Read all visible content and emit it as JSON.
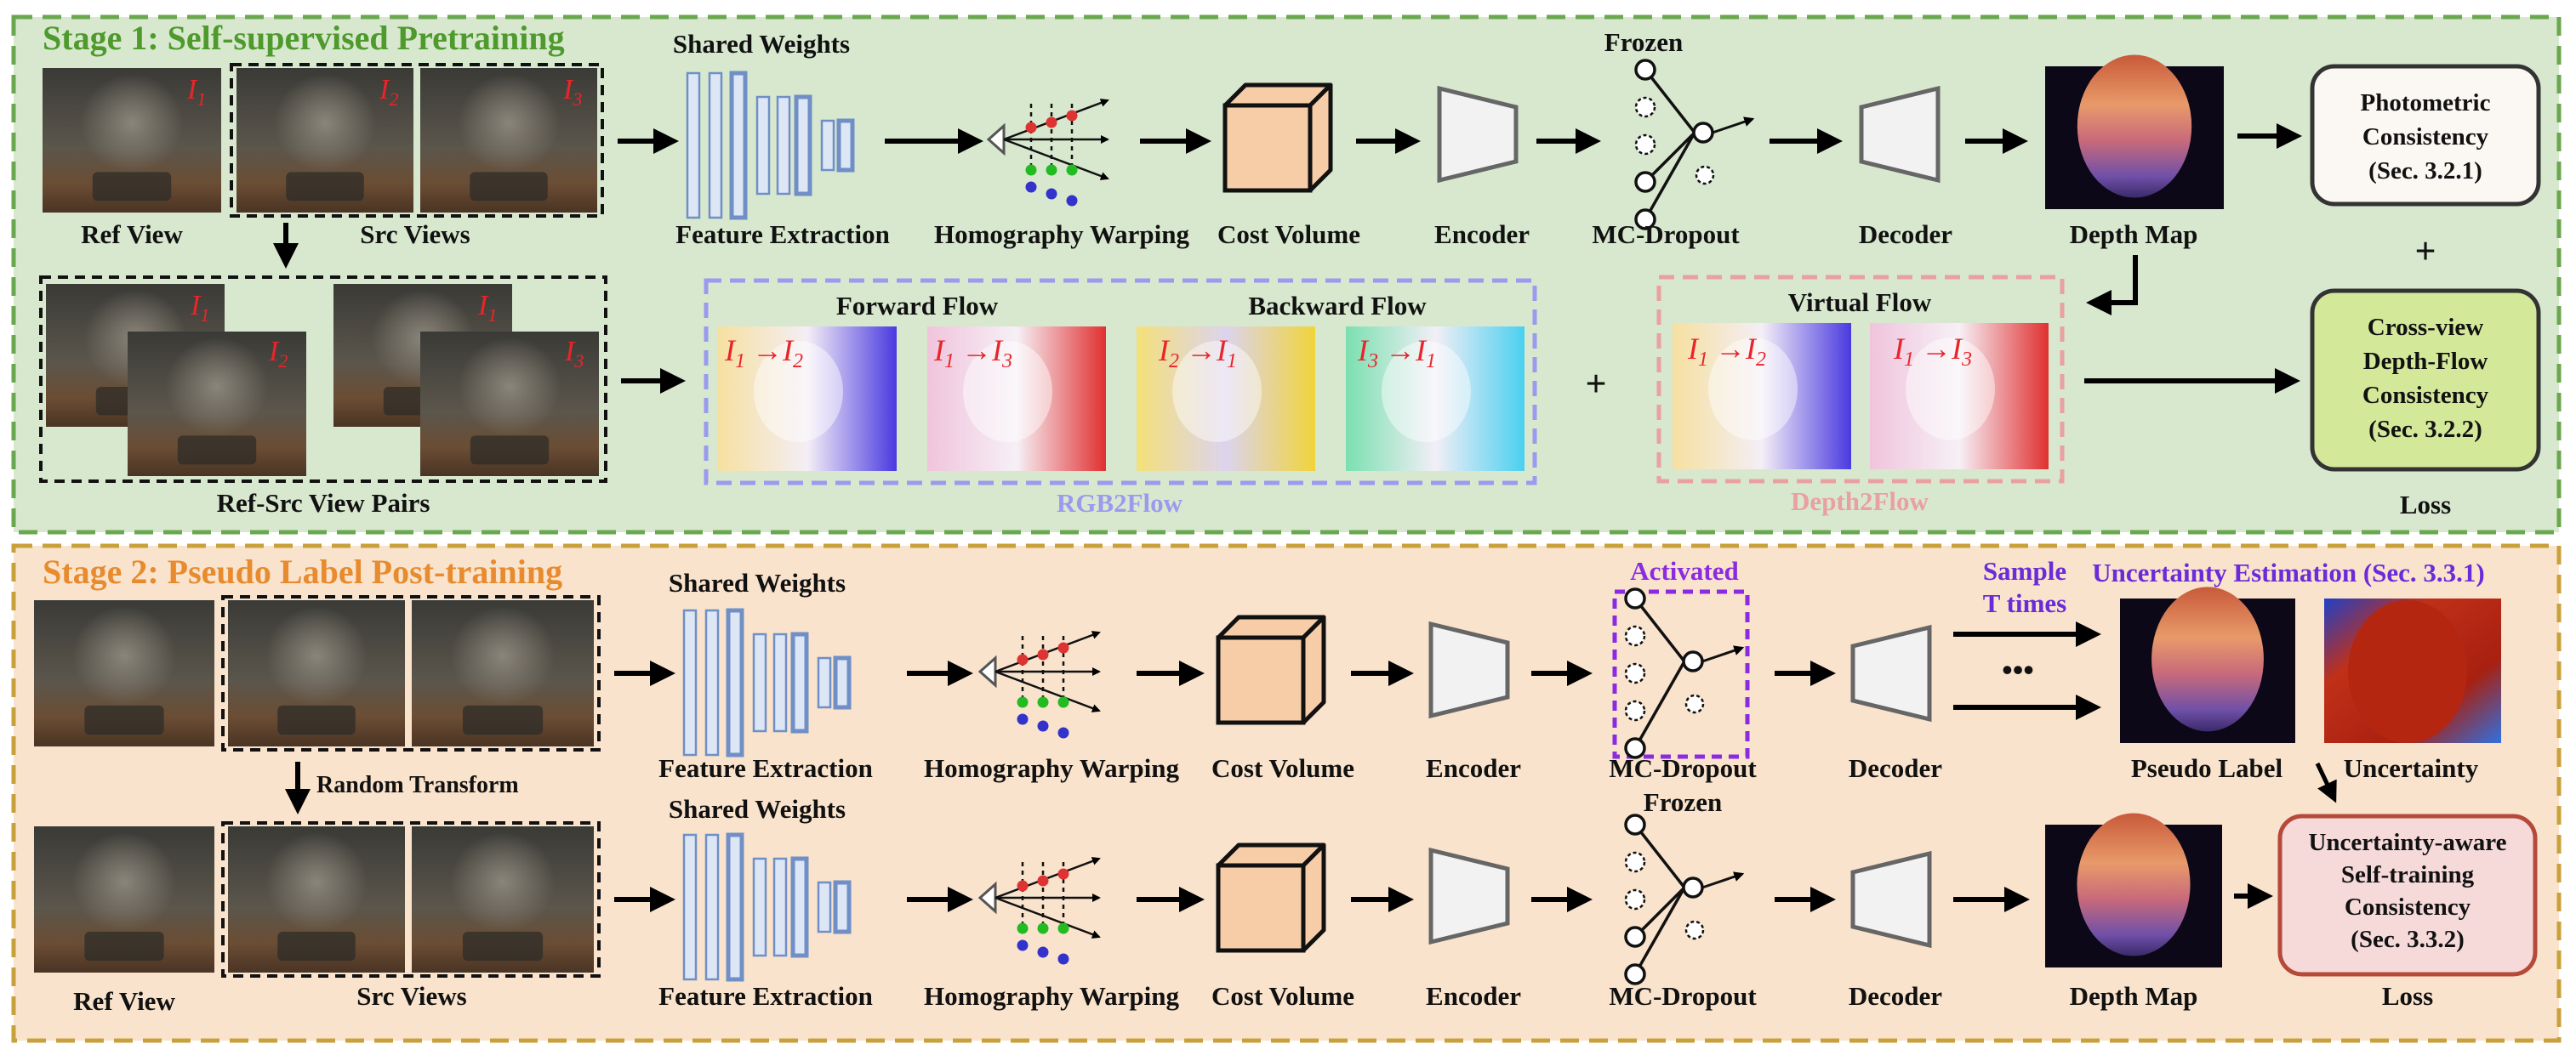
{
  "stage1": {
    "title": "Stage 1: Self-supervised Pretraining",
    "ref_view": "Ref View",
    "src_views": "Src Views",
    "img_labels": [
      "I",
      "I",
      "I"
    ],
    "img_subs": [
      "1",
      "2",
      "3"
    ],
    "shared_weights": "Shared Weights",
    "frozen": "Frozen",
    "feature_extraction": "Feature Extraction",
    "homography_warping": "Homography Warping",
    "cost_volume": "Cost Volume",
    "encoder": "Encoder",
    "mc_dropout": "MC-Dropout",
    "decoder": "Decoder",
    "depth_map": "Depth Map",
    "photometric": [
      "Photometric",
      "Consistency",
      "(Sec. 3.2.1)"
    ],
    "plus": "+",
    "crossview": [
      "Cross-view",
      "Depth-Flow",
      "Consistency",
      "(Sec. 3.2.2)"
    ],
    "loss": "Loss",
    "pairs_label": "Ref-Src View Pairs",
    "forward_flow": "Forward Flow",
    "backward_flow": "Backward Flow",
    "virtual_flow": "Virtual Flow",
    "rgb2flow": "RGB2Flow",
    "depth2flow": "Depth2Flow",
    "arrow_sym": "→",
    "flow_pairs": [
      {
        "a": "I",
        "as": "1",
        "b": "I",
        "bs": "2"
      },
      {
        "a": "I",
        "as": "1",
        "b": "I",
        "bs": "3"
      },
      {
        "a": "I",
        "as": "2",
        "b": "I",
        "bs": "1"
      },
      {
        "a": "I",
        "as": "3",
        "b": "I",
        "bs": "1"
      },
      {
        "a": "I",
        "as": "1",
        "b": "I",
        "bs": "2"
      },
      {
        "a": "I",
        "as": "1",
        "b": "I",
        "bs": "3"
      }
    ]
  },
  "stage2": {
    "title": "Stage 2: Pseudo Label Post-training",
    "shared_weights_1": "Shared Weights",
    "shared_weights_2": "Shared Weights",
    "activated": "Activated",
    "frozen": "Frozen",
    "random_transform": "Random Transform",
    "sample": [
      "Sample",
      "T times"
    ],
    "dots": "•••",
    "uncertainty_estimation": "Uncertainty Estimation (Sec. 3.3.1)",
    "feature_extraction": "Feature Extraction",
    "homography_warping": "Homography Warping",
    "cost_volume": "Cost Volume",
    "encoder": "Encoder",
    "mc_dropout": "MC-Dropout",
    "decoder": "Decoder",
    "pseudo_label": "Pseudo Label",
    "uncertainty": "Uncertainty",
    "depth_map": "Depth Map",
    "ref_view": "Ref View",
    "src_views": "Src Views",
    "self_training": [
      "Uncertainty-aware",
      "Self-training",
      "Consistency",
      "(Sec. 3.3.2)"
    ],
    "loss": "Loss"
  },
  "colors": {
    "stage1_bg": "#d8e8cf",
    "stage1_border": "#6aa84f",
    "stage2_bg": "#f9e3cc",
    "stage2_border": "#c9a13c",
    "stage1_title": "#4e9a2c",
    "stage2_title": "#e88b2e",
    "rgb2flow": "#9a9aee",
    "depth2flow": "#e9a0a0",
    "activated": "#8a2be2",
    "sample": "#6a2bd8",
    "cost_volume": "#f6cda6",
    "crossview_fill": "#d4e89a",
    "self_training_fill": "#f6dada",
    "self_training_border": "#b5493a",
    "feature_stroke": "#6f8fc6",
    "feature_fill": "#dde6f5"
  }
}
